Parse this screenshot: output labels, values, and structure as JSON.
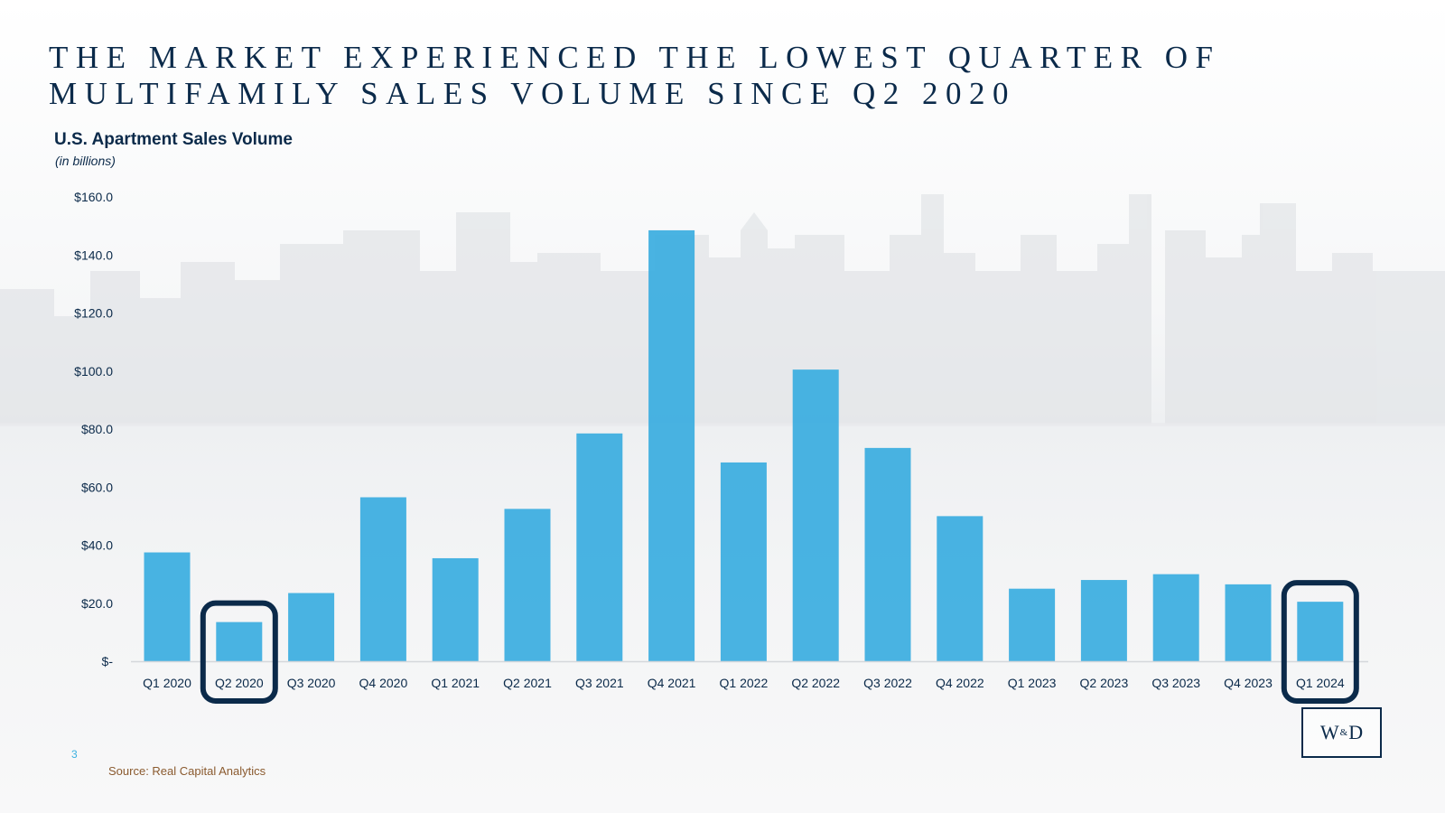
{
  "headline": "THE MARKET EXPERIENCED THE LOWEST QUARTER OF MULTIFAMILY SALES VOLUME SINCE Q2 2020",
  "page_number": "3",
  "source": "Source: Real Capital Analytics",
  "logo": {
    "left": "W",
    "amp": "&",
    "right": "D"
  },
  "colors": {
    "bar": "#39ace0",
    "highlight": "#0b2a4a",
    "text": "#0b2a4a"
  },
  "chart_data": {
    "type": "bar",
    "title": "U.S. Apartment Sales Volume",
    "subtitle": "(in billions)",
    "categories": [
      "Q1 2020",
      "Q2 2020",
      "Q3 2020",
      "Q4 2020",
      "Q1 2021",
      "Q2 2021",
      "Q3 2021",
      "Q4 2021",
      "Q1 2022",
      "Q2 2022",
      "Q3 2022",
      "Q4 2022",
      "Q1 2023",
      "Q2 2023",
      "Q3 2023",
      "Q4 2023",
      "Q1 2024"
    ],
    "values": [
      37.5,
      13.5,
      23.5,
      56.5,
      35.5,
      52.5,
      78.5,
      148.5,
      68.5,
      100.5,
      73.5,
      50.0,
      25.0,
      28.0,
      30.0,
      26.5,
      20.5
    ],
    "ylim": [
      0,
      160
    ],
    "yticks": [
      0,
      20,
      40,
      60,
      80,
      100,
      120,
      140,
      160
    ],
    "ytick_labels": [
      "$-",
      "$20.0",
      "$40.0",
      "$60.0",
      "$80.0",
      "$100.0",
      "$120.0",
      "$140.0",
      "$160.0"
    ],
    "highlighted": [
      "Q2 2020",
      "Q1 2024"
    ],
    "grid": false,
    "legend": "none"
  }
}
